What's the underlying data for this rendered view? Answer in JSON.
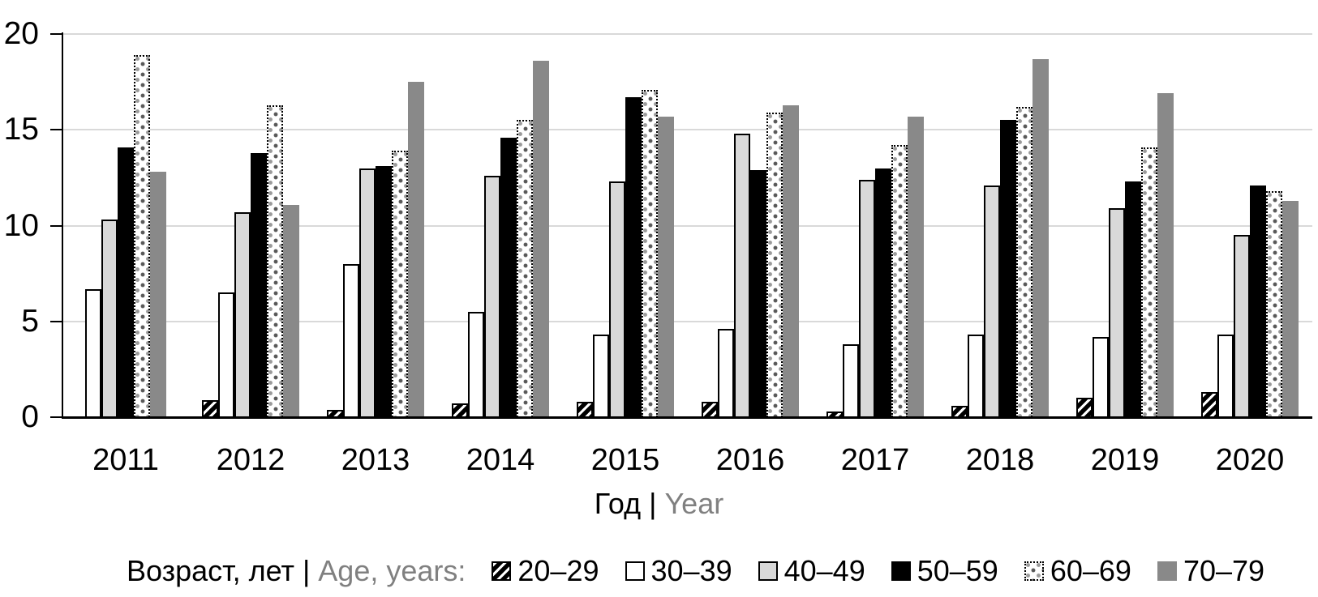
{
  "figure": {
    "background": "#ffffff"
  },
  "chart_data": {
    "type": "bar",
    "title": "",
    "categories": [
      "2011",
      "2012",
      "2013",
      "2014",
      "2015",
      "2016",
      "2017",
      "2018",
      "2019",
      "2020"
    ],
    "series": [
      {
        "name": "20–29",
        "pattern": "diagonal-hatch",
        "fill": "#ffffff",
        "stroke": "#000000",
        "values": [
          0,
          0.9,
          0.4,
          0.7,
          0.8,
          0.8,
          0.3,
          0.6,
          1.0,
          1.3
        ]
      },
      {
        "name": "30–39",
        "pattern": "solid",
        "fill": "#ffffff",
        "stroke": "#000000",
        "values": [
          6.7,
          6.5,
          8.0,
          5.5,
          4.3,
          4.6,
          3.8,
          4.3,
          4.2,
          4.3
        ]
      },
      {
        "name": "40–49",
        "pattern": "solid",
        "fill": "#d9d9d9",
        "stroke": "#000000",
        "values": [
          10.3,
          10.7,
          13.0,
          12.6,
          12.3,
          14.8,
          12.4,
          12.1,
          10.9,
          9.5
        ]
      },
      {
        "name": "50–59",
        "pattern": "solid",
        "fill": "#000000",
        "stroke": "#000000",
        "values": [
          14.1,
          13.8,
          13.1,
          14.6,
          16.7,
          12.9,
          13.0,
          15.5,
          12.3,
          12.1
        ]
      },
      {
        "name": "60–69",
        "pattern": "square-dots",
        "fill": "#ffffff",
        "stroke": "#000000",
        "values": [
          18.9,
          16.3,
          13.9,
          15.5,
          17.1,
          15.9,
          14.2,
          16.2,
          14.1,
          11.8
        ]
      },
      {
        "name": "70–79",
        "pattern": "solid",
        "fill": "#898989",
        "stroke": "none",
        "values": [
          12.8,
          11.1,
          17.5,
          18.6,
          15.7,
          16.3,
          15.7,
          18.7,
          16.9,
          11.3
        ]
      }
    ],
    "ylim": [
      0,
      20
    ],
    "yticks": [
      0,
      5,
      10,
      15,
      20
    ],
    "grid": "horizontal",
    "gridline_color": "#d9d9d9",
    "muted_text_color": "#808080",
    "xlabel": {
      "ru": "Год",
      "sep": "|",
      "en": "Year"
    },
    "legend_title": {
      "ru": "Возраст, лет",
      "sep": "|",
      "en": "Age, years:"
    },
    "legend_position": "bottom"
  }
}
